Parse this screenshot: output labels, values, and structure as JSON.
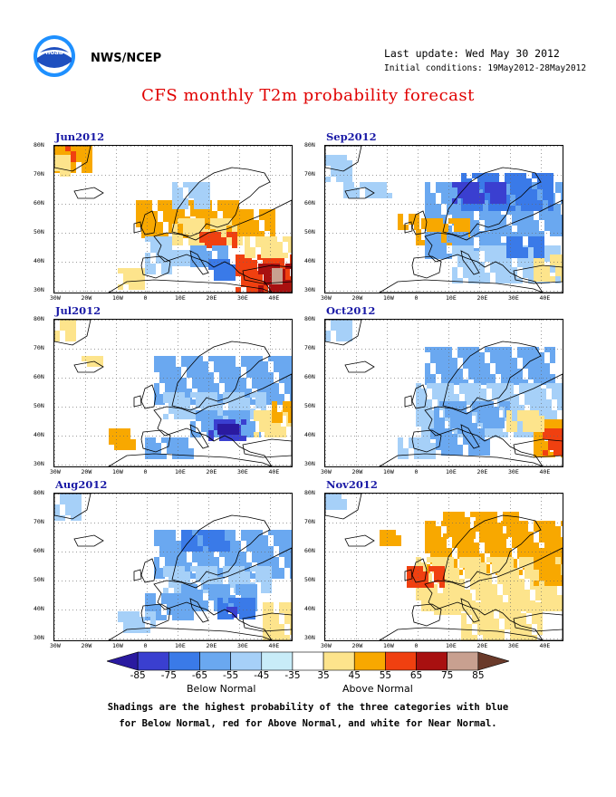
{
  "header": {
    "agency": "NWS/NCEP",
    "last_update": "Last update: Wed May 30 2012",
    "initial_conditions": "Initial conditions: 19May2012-28May2012",
    "title": "CFS monthly T2m probability forecast"
  },
  "panels": [
    {
      "label": "Jun2012",
      "scheme": "jun"
    },
    {
      "label": "Sep2012",
      "scheme": "sep"
    },
    {
      "label": "Jul2012",
      "scheme": "jul"
    },
    {
      "label": "Oct2012",
      "scheme": "oct"
    },
    {
      "label": "Aug2012",
      "scheme": "aug"
    },
    {
      "label": "Nov2012",
      "scheme": "nov"
    }
  ],
  "map_axes": {
    "lat_labels": [
      "80N",
      "70N",
      "60N",
      "50N",
      "40N",
      "30N"
    ],
    "lon_labels": [
      "30W",
      "20W",
      "10W",
      "0",
      "10E",
      "20E",
      "30E",
      "40E"
    ]
  },
  "colorbar": {
    "ticks": [
      "-85",
      "-75",
      "-65",
      "-55",
      "-45",
      "-35",
      "35",
      "45",
      "55",
      "65",
      "75",
      "85"
    ],
    "colors": [
      "#2a1aa0",
      "#3a3fd0",
      "#3a7ae8",
      "#6aa8f0",
      "#a6d0f8",
      "#c8ecf8",
      "#ffffff",
      "#fde48c",
      "#f8a800",
      "#f04010",
      "#a81010",
      "#c8a090",
      "#6a3a2a"
    ],
    "below_label": "Below Normal",
    "above_label": "Above Normal"
  },
  "notes": {
    "line1": "Shadings are the highest probability of the three categories with blue",
    "line2": "for Below Normal, red for Above Normal, and white for Near Normal."
  }
}
